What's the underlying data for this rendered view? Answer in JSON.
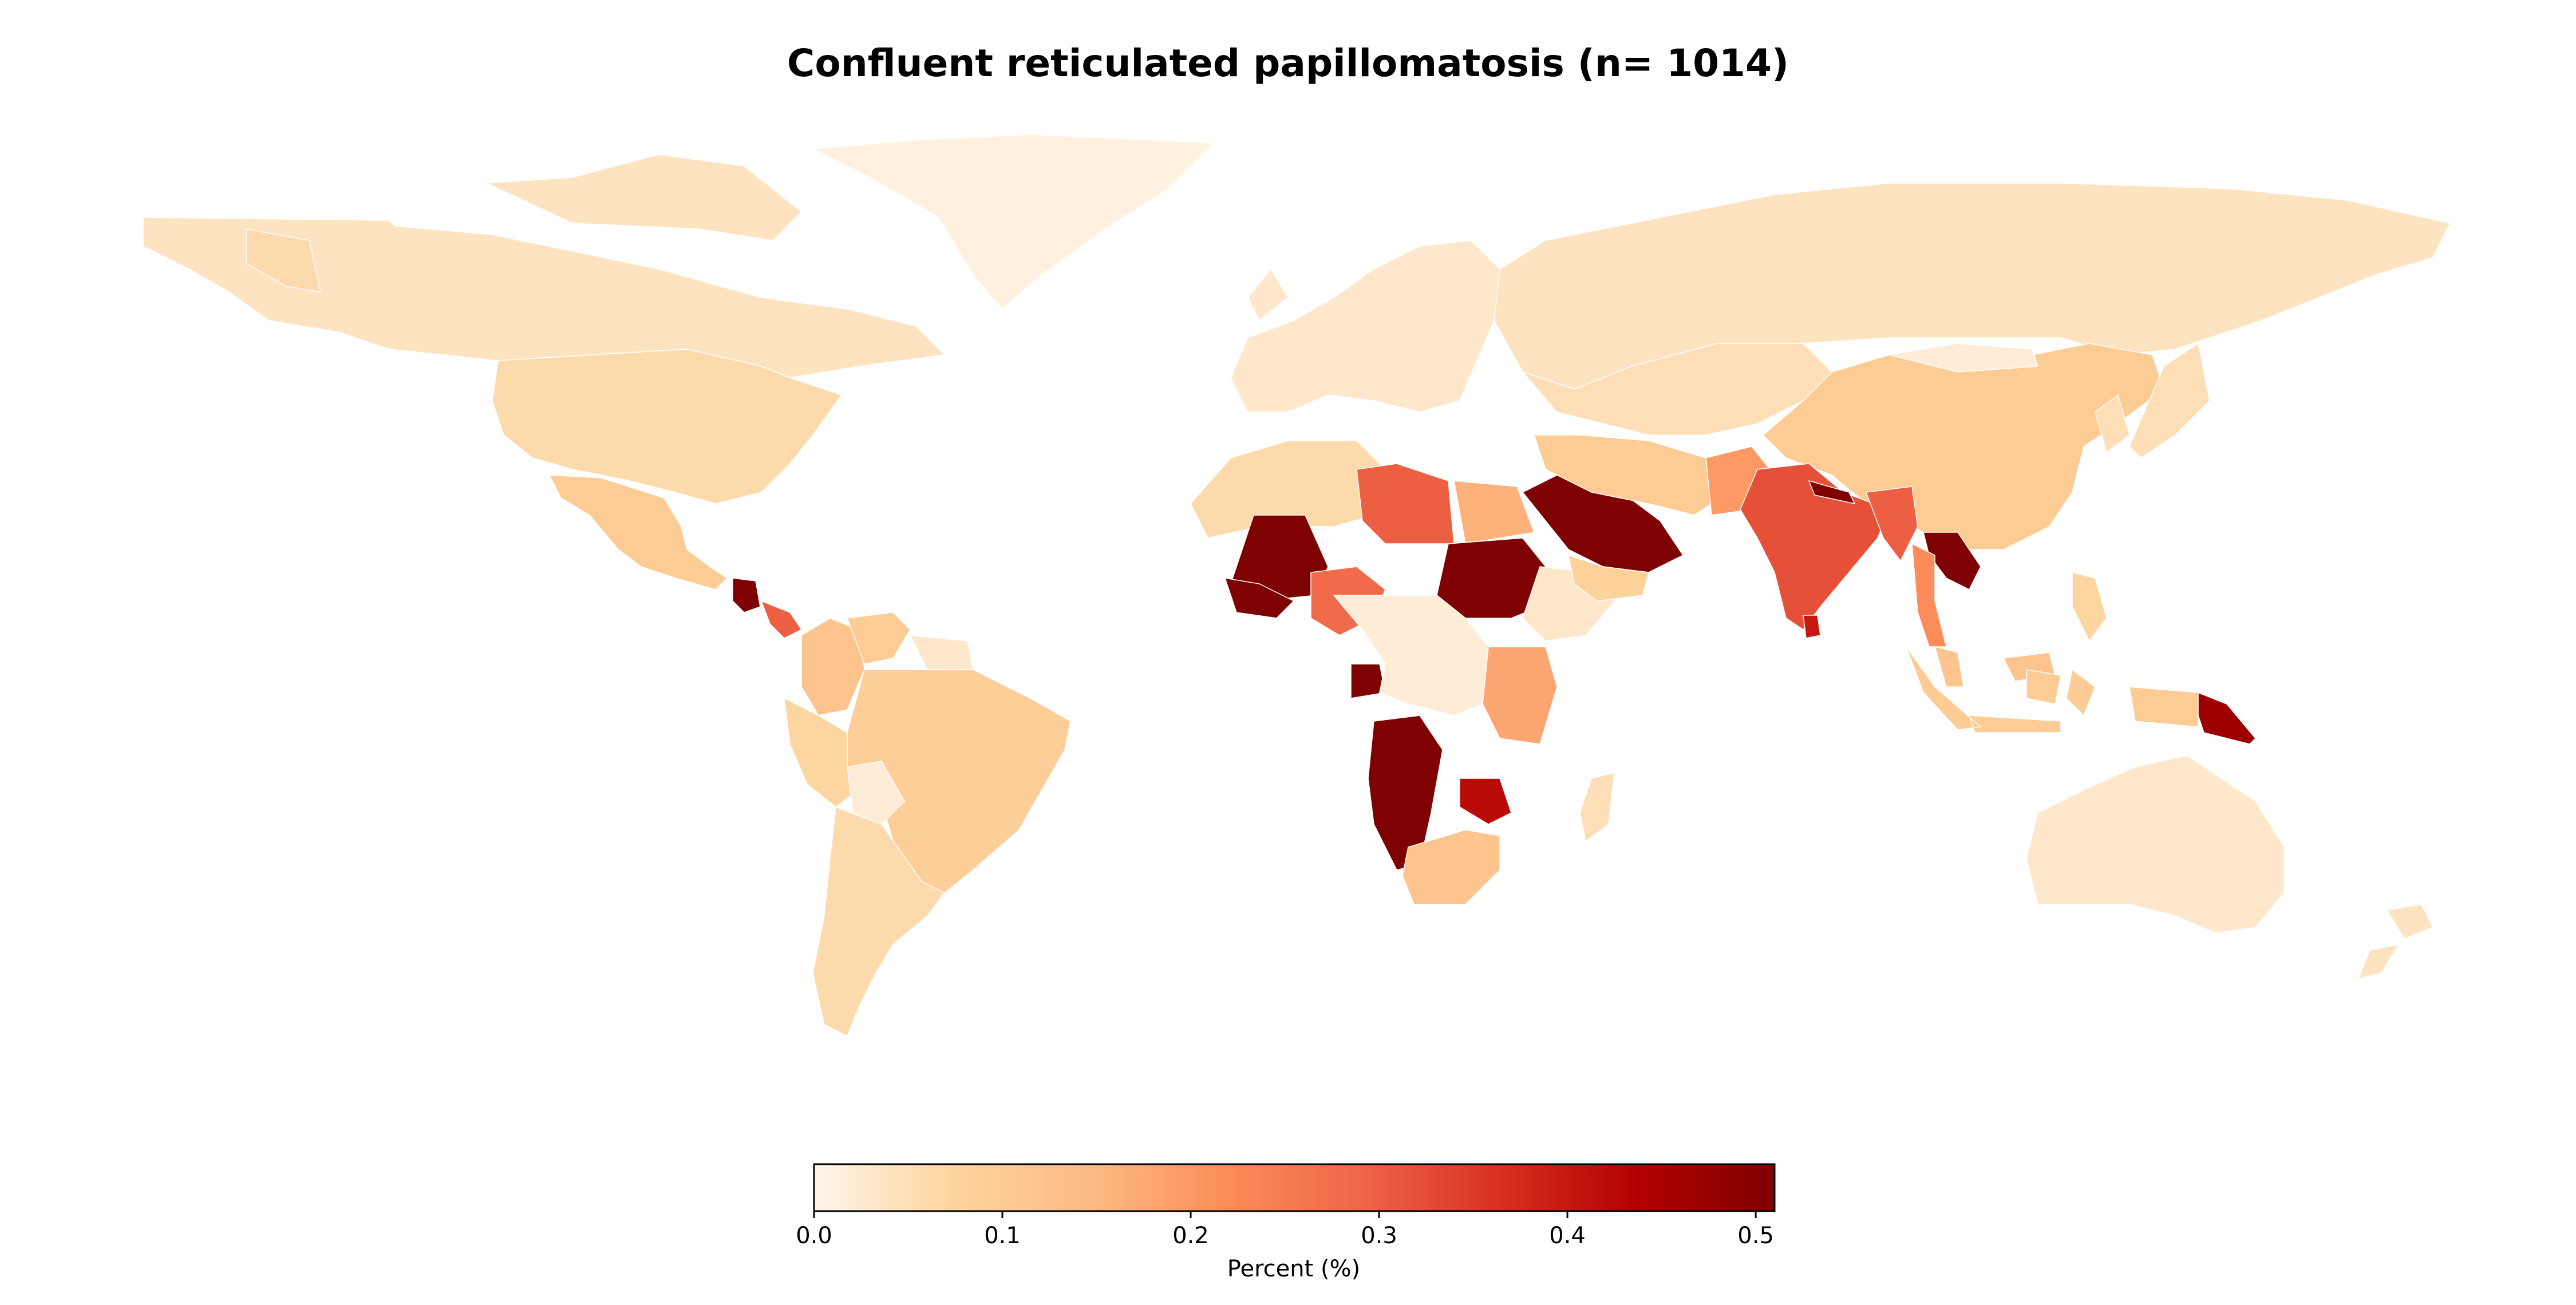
{
  "title": "Confluent reticulated papillomatosis (n= 1014)",
  "colorbar": {
    "label": "Percent (%)",
    "ticks": [
      "0.0",
      "0.1",
      "0.2",
      "0.3",
      "0.4",
      "0.5"
    ],
    "range": [
      0,
      0.51
    ],
    "colormap": [
      "#fff5eb",
      "#fdd49e",
      "#fdbb84",
      "#fc8d59",
      "#ef6548",
      "#d7301f",
      "#b30000",
      "#7f0000"
    ]
  },
  "chart_data": {
    "type": "choropleth",
    "title": "Confluent reticulated papillomatosis (n= 1014)",
    "colorbar_label": "Percent (%)",
    "value_range": [
      0,
      0.51
    ],
    "regions": [
      {
        "name": "Canada",
        "value": 0.04
      },
      {
        "name": "Greenland",
        "value": 0.01
      },
      {
        "name": "United States",
        "value": 0.06
      },
      {
        "name": "Mexico",
        "value": 0.1
      },
      {
        "name": "Guatemala",
        "value": 0.51
      },
      {
        "name": "Central America",
        "value": 0.3
      },
      {
        "name": "Colombia",
        "value": 0.12
      },
      {
        "name": "Venezuela",
        "value": 0.1
      },
      {
        "name": "Guianas",
        "value": 0.03
      },
      {
        "name": "Brazil",
        "value": 0.09
      },
      {
        "name": "Peru",
        "value": 0.07
      },
      {
        "name": "Bolivia",
        "value": 0.02
      },
      {
        "name": "Southern Cone",
        "value": 0.06
      },
      {
        "name": "Europe",
        "value": 0.03
      },
      {
        "name": "Russia",
        "value": 0.04
      },
      {
        "name": "Central Asia",
        "value": 0.05
      },
      {
        "name": "China",
        "value": 0.1
      },
      {
        "name": "Mongolia",
        "value": 0.02
      },
      {
        "name": "Japan & Korea",
        "value": 0.05
      },
      {
        "name": "Morocco & Algeria",
        "value": 0.06
      },
      {
        "name": "Libya",
        "value": 0.3
      },
      {
        "name": "Egypt",
        "value": 0.16
      },
      {
        "name": "Mali",
        "value": 0.51
      },
      {
        "name": "Ghana & Togo",
        "value": 0.51
      },
      {
        "name": "Nigeria",
        "value": 0.28
      },
      {
        "name": "Sudan",
        "value": 0.51
      },
      {
        "name": "Ethiopia & Horn",
        "value": 0.03
      },
      {
        "name": "Kenya & Tanzania",
        "value": 0.18
      },
      {
        "name": "Gabon & Congo",
        "value": 0.51
      },
      {
        "name": "Central Africa",
        "value": 0.02
      },
      {
        "name": "Angola & Namibia",
        "value": 0.51
      },
      {
        "name": "Zimbabwe",
        "value": 0.42
      },
      {
        "name": "South Africa",
        "value": 0.12
      },
      {
        "name": "Madagascar",
        "value": 0.05
      },
      {
        "name": "Saudi Arabia & Gulf",
        "value": 0.51
      },
      {
        "name": "Yemen",
        "value": 0.08
      },
      {
        "name": "Iran & Iraq",
        "value": 0.1
      },
      {
        "name": "Pakistan",
        "value": 0.2
      },
      {
        "name": "India",
        "value": 0.32
      },
      {
        "name": "Sri Lanka",
        "value": 0.4
      },
      {
        "name": "Nepal",
        "value": 0.51
      },
      {
        "name": "Bangladesh & Myanmar",
        "value": 0.3
      },
      {
        "name": "Laos & Vietnam",
        "value": 0.51
      },
      {
        "name": "Thailand",
        "value": 0.22
      },
      {
        "name": "Malaysia",
        "value": 0.12
      },
      {
        "name": "Indonesia",
        "value": 0.1
      },
      {
        "name": "Philippines",
        "value": 0.07
      },
      {
        "name": "Papua New Guinea",
        "value": 0.47
      },
      {
        "name": "Australia",
        "value": 0.03
      },
      {
        "name": "New Zealand",
        "value": 0.04
      }
    ]
  }
}
